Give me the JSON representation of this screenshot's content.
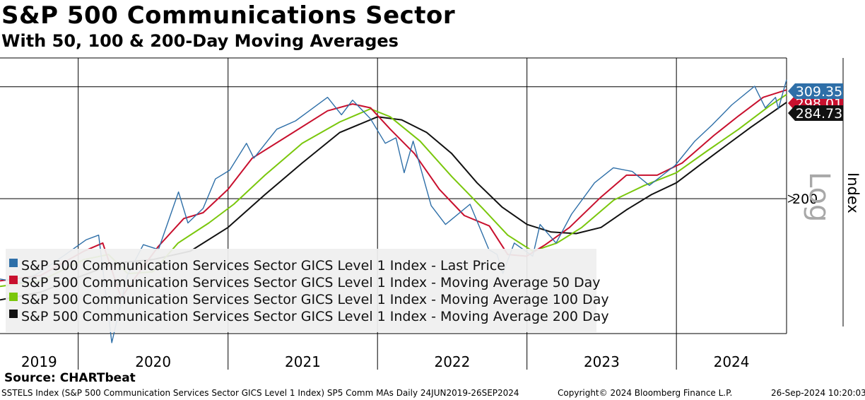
{
  "header": {
    "title": "S&P 500 Communications Sector",
    "subtitle": "With 50, 100 & 200-Day Moving Averages"
  },
  "source": "Source: CHARTbeat",
  "footer": {
    "left": "SSTELS Index (S&P 500 Communication Services Sector GICS Level 1 Index) SP5 Comm MAs  Daily 24JUN2019-26SEP2024",
    "center": "Copyright© 2024 Bloomberg Finance L.P.",
    "right": "26-Sep-2024 10:20:03"
  },
  "chart_data": {
    "type": "line",
    "y_scale": "log",
    "y_axis_side": "right",
    "ylim": [
      122,
      335
    ],
    "y_ticks": [
      {
        "value": 200,
        "label": "200"
      }
    ],
    "y_watermark": "Log",
    "ylabel": "Index",
    "x_ticks": [
      "2019",
      "2020",
      "2021",
      "2022",
      "2023",
      "2024"
    ],
    "xlim": [
      "2019-06-24",
      "2024-09-26"
    ],
    "grid": true,
    "legend_position": "bottom-left",
    "series": [
      {
        "name": "S&P 500 Communication Services Sector GICS Level 1 Index - Last Price",
        "color": "#2e6fa8",
        "last_label": "309.35",
        "points": [
          [
            "2019-06-24",
            149
          ],
          [
            "2019-08-15",
            147
          ],
          [
            "2019-10-01",
            153
          ],
          [
            "2019-12-01",
            163
          ],
          [
            "2020-01-20",
            172
          ],
          [
            "2020-02-20",
            175
          ],
          [
            "2020-03-23",
            118
          ],
          [
            "2020-04-30",
            151
          ],
          [
            "2020-06-08",
            169
          ],
          [
            "2020-07-15",
            166
          ],
          [
            "2020-09-02",
            205
          ],
          [
            "2020-09-25",
            183
          ],
          [
            "2020-11-01",
            193
          ],
          [
            "2020-12-01",
            215
          ],
          [
            "2021-01-05",
            222
          ],
          [
            "2021-02-15",
            245
          ],
          [
            "2021-03-05",
            232
          ],
          [
            "2021-04-30",
            258
          ],
          [
            "2021-06-15",
            266
          ],
          [
            "2021-07-15",
            275
          ],
          [
            "2021-09-01",
            290
          ],
          [
            "2021-10-05",
            272
          ],
          [
            "2021-11-01",
            287
          ],
          [
            "2021-12-15",
            268
          ],
          [
            "2022-01-20",
            245
          ],
          [
            "2022-02-15",
            250
          ],
          [
            "2022-03-07",
            220
          ],
          [
            "2022-03-29",
            247
          ],
          [
            "2022-05-12",
            195
          ],
          [
            "2022-06-16",
            182
          ],
          [
            "2022-08-15",
            196
          ],
          [
            "2022-09-30",
            166
          ],
          [
            "2022-10-20",
            163
          ],
          [
            "2022-11-03",
            152
          ],
          [
            "2022-12-01",
            170
          ],
          [
            "2023-01-15",
            162
          ],
          [
            "2023-02-02",
            182
          ],
          [
            "2023-03-13",
            170
          ],
          [
            "2023-04-20",
            189
          ],
          [
            "2023-06-15",
            212
          ],
          [
            "2023-07-31",
            224
          ],
          [
            "2023-09-15",
            221
          ],
          [
            "2023-10-27",
            210
          ],
          [
            "2023-12-29",
            226
          ],
          [
            "2024-02-15",
            247
          ],
          [
            "2024-03-28",
            262
          ],
          [
            "2024-05-15",
            282
          ],
          [
            "2024-07-10",
            302
          ],
          [
            "2024-08-05",
            279
          ],
          [
            "2024-08-30",
            290
          ],
          [
            "2024-09-06",
            278
          ],
          [
            "2024-09-26",
            309.35
          ]
        ]
      },
      {
        "name": "S&P 500 Communication Services Sector GICS Level 1 Index - Moving Average 50 Day",
        "color": "#c8102e",
        "last_label": "298.01",
        "points": [
          [
            "2019-06-24",
            148
          ],
          [
            "2019-10-01",
            151
          ],
          [
            "2020-01-15",
            165
          ],
          [
            "2020-03-01",
            170
          ],
          [
            "2020-04-15",
            139
          ],
          [
            "2020-05-20",
            150
          ],
          [
            "2020-07-15",
            168
          ],
          [
            "2020-09-15",
            186
          ],
          [
            "2020-11-01",
            190
          ],
          [
            "2021-01-01",
            207
          ],
          [
            "2021-03-01",
            232
          ],
          [
            "2021-06-01",
            253
          ],
          [
            "2021-09-01",
            276
          ],
          [
            "2021-11-01",
            283
          ],
          [
            "2021-12-15",
            279
          ],
          [
            "2022-02-01",
            258
          ],
          [
            "2022-04-01",
            236
          ],
          [
            "2022-06-01",
            207
          ],
          [
            "2022-08-01",
            188
          ],
          [
            "2022-10-01",
            181
          ],
          [
            "2022-11-15",
            163
          ],
          [
            "2022-12-31",
            162
          ],
          [
            "2023-02-15",
            169
          ],
          [
            "2023-04-15",
            180
          ],
          [
            "2023-06-30",
            201
          ],
          [
            "2023-09-01",
            218
          ],
          [
            "2023-11-15",
            218
          ],
          [
            "2024-01-15",
            228
          ],
          [
            "2024-04-01",
            252
          ],
          [
            "2024-06-01",
            271
          ],
          [
            "2024-07-31",
            290
          ],
          [
            "2024-09-26",
            298.01
          ]
        ]
      },
      {
        "name": "S&P 500 Communication Services Sector GICS Level 1 Index - Moving Average 100 Day",
        "color": "#7ac70c",
        "last_label": "",
        "points": [
          [
            "2019-06-24",
            145
          ],
          [
            "2019-10-01",
            148
          ],
          [
            "2020-01-15",
            160
          ],
          [
            "2020-03-15",
            163
          ],
          [
            "2020-05-01",
            152
          ],
          [
            "2020-07-01",
            153
          ],
          [
            "2020-09-01",
            170
          ],
          [
            "2020-11-15",
            183
          ],
          [
            "2021-01-15",
            196
          ],
          [
            "2021-04-01",
            218
          ],
          [
            "2021-07-01",
            245
          ],
          [
            "2021-10-01",
            265
          ],
          [
            "2021-12-15",
            278
          ],
          [
            "2022-02-01",
            270
          ],
          [
            "2022-04-15",
            247
          ],
          [
            "2022-07-01",
            217
          ],
          [
            "2022-09-15",
            193
          ],
          [
            "2022-11-15",
            175
          ],
          [
            "2023-01-15",
            165
          ],
          [
            "2023-03-15",
            170
          ],
          [
            "2023-05-15",
            180
          ],
          [
            "2023-08-01",
            199
          ],
          [
            "2023-10-15",
            210
          ],
          [
            "2024-01-01",
            220
          ],
          [
            "2024-03-15",
            238
          ],
          [
            "2024-06-01",
            258
          ],
          [
            "2024-08-15",
            281
          ],
          [
            "2024-09-26",
            293
          ]
        ]
      },
      {
        "name": "S&P 500 Communication Services Sector GICS Level 1 Index - Moving Average 200 Day",
        "color": "#111111",
        "last_label": "284.73",
        "points": [
          [
            "2019-06-24",
            138
          ],
          [
            "2019-10-01",
            142
          ],
          [
            "2020-01-01",
            150
          ],
          [
            "2020-04-01",
            158
          ],
          [
            "2020-07-01",
            160
          ],
          [
            "2020-10-01",
            165
          ],
          [
            "2021-01-01",
            180
          ],
          [
            "2021-04-01",
            203
          ],
          [
            "2021-07-01",
            228
          ],
          [
            "2021-10-01",
            255
          ],
          [
            "2022-01-01",
            270
          ],
          [
            "2022-03-01",
            267
          ],
          [
            "2022-05-01",
            255
          ],
          [
            "2022-07-01",
            236
          ],
          [
            "2022-09-01",
            212
          ],
          [
            "2022-11-01",
            194
          ],
          [
            "2023-01-01",
            182
          ],
          [
            "2023-03-01",
            177
          ],
          [
            "2023-05-01",
            176
          ],
          [
            "2023-07-01",
            180
          ],
          [
            "2023-09-01",
            192
          ],
          [
            "2023-11-01",
            203
          ],
          [
            "2024-01-01",
            212
          ],
          [
            "2024-03-01",
            227
          ],
          [
            "2024-05-01",
            243
          ],
          [
            "2024-07-01",
            260
          ],
          [
            "2024-09-26",
            284.73
          ]
        ]
      }
    ]
  }
}
